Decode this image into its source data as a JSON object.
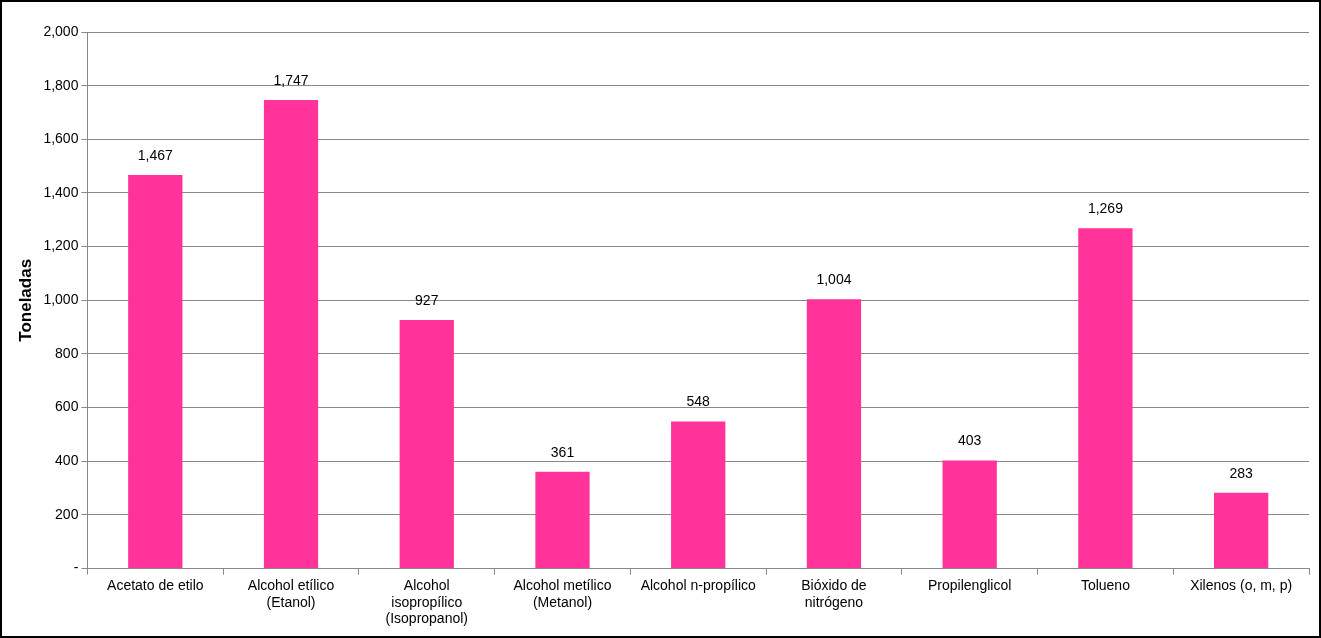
{
  "chart_data": {
    "type": "bar",
    "ylabel": "Toneladas",
    "categories": [
      "Acetato de etilo",
      "Alcohol etílico (Etanol)",
      "Alcohol isopropílico (Isopropanol)",
      "Alcohol metílico (Metanol)",
      "Alcohol n-propílico",
      "Bióxido de nitrógeno",
      "Propilenglicol",
      "Tolueno",
      "Xilenos (o, m, p)"
    ],
    "values": [
      1467,
      1747,
      927,
      361,
      548,
      1004,
      403,
      1269,
      283
    ],
    "value_labels": [
      "1,467",
      "1,747",
      "927",
      "361",
      "548",
      "1,004",
      "403",
      "1,269",
      "283"
    ],
    "color": "#ff3399",
    "ylim": [
      0,
      2000
    ],
    "yticks": [
      {
        "value": 0,
        "label": "-"
      },
      200,
      400,
      600,
      800,
      {
        "value": 1000,
        "label": "1,000"
      },
      {
        "value": 1200,
        "label": "1,200"
      },
      {
        "value": 1400,
        "label": "1,400"
      },
      {
        "value": 1600,
        "label": "1,600"
      },
      {
        "value": 1800,
        "label": "1,800"
      },
      {
        "value": 2000,
        "label": "2,000"
      }
    ],
    "grid": "y",
    "legend": false
  }
}
